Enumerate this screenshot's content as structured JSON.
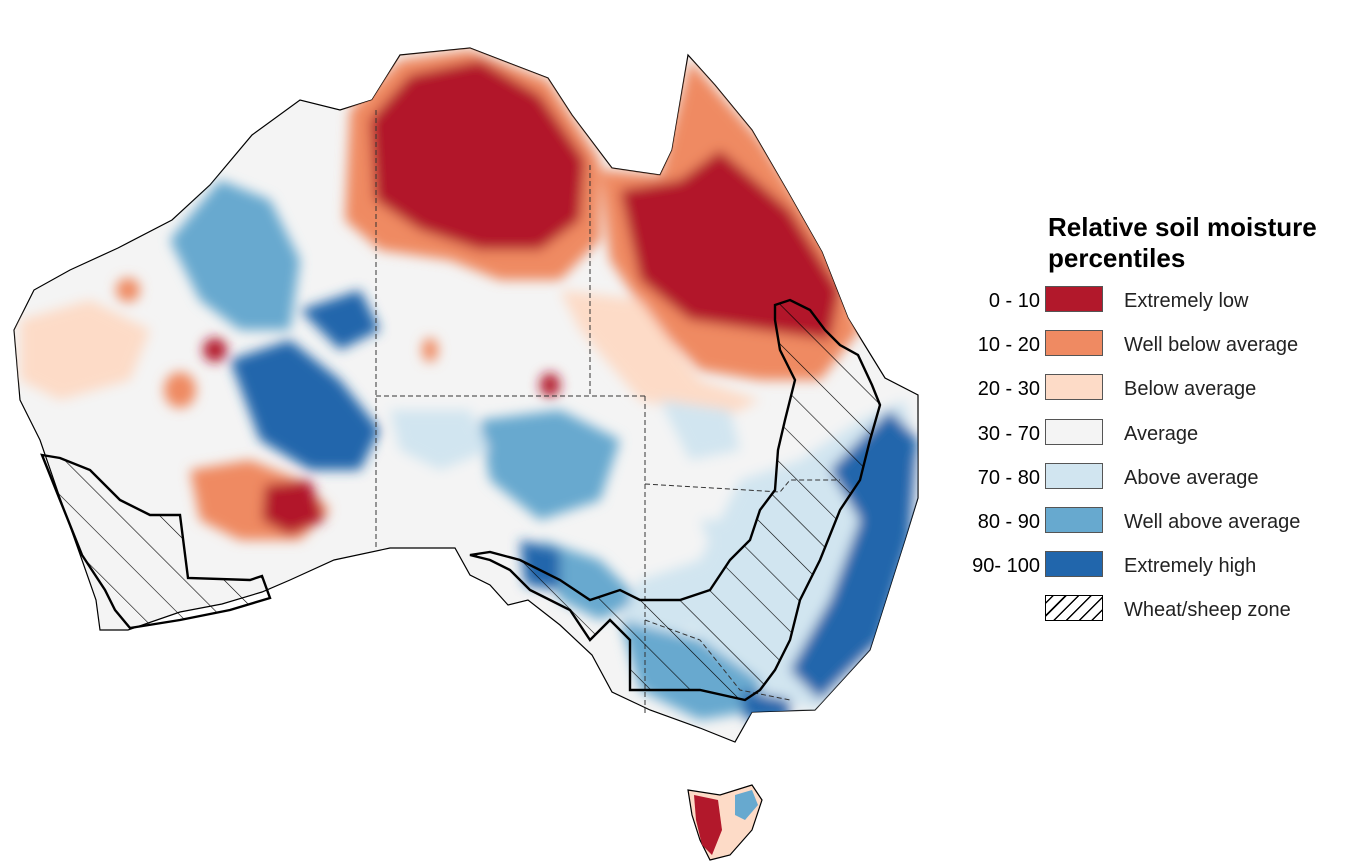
{
  "legend": {
    "title_line1": "Relative soil moisture",
    "title_line2": "percentiles",
    "items": [
      {
        "range": "0 - 10",
        "label": "Extremely low",
        "color": "#b2182b"
      },
      {
        "range": "10 - 20",
        "label": "Well below average",
        "color": "#ef8a62"
      },
      {
        "range": "20 - 30",
        "label": "Below average",
        "color": "#fddbc7"
      },
      {
        "range": "30 - 70",
        "label": "Average",
        "color": "#f4f4f4"
      },
      {
        "range": "70 - 80",
        "label": "Above average",
        "color": "#d1e5f0"
      },
      {
        "range": "80 - 90",
        "label": "Well above average",
        "color": "#67a9cf"
      },
      {
        "range": "90- 100",
        "label": "Extremely high",
        "color": "#2166ac"
      },
      {
        "range": "",
        "label": "Wheat/sheep zone",
        "color": "hatch"
      }
    ]
  },
  "map": {
    "regions": [
      "Western Australia",
      "Northern Territory",
      "South Australia",
      "Queensland",
      "New South Wales",
      "Victoria",
      "Tasmania"
    ]
  }
}
